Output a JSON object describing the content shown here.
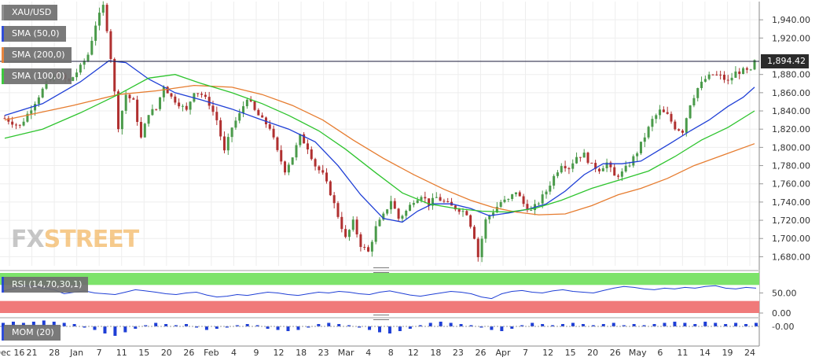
{
  "chart_data": [
    {
      "type": "candlestick",
      "symbol": "XAU/USD",
      "last_price_label": "1,894.42",
      "last_price": 1894.42,
      "ylim": [
        1670,
        1960
      ],
      "yticks": [
        {
          "v": 1680,
          "label": "1,680.00"
        },
        {
          "v": 1700,
          "label": "1,700.00"
        },
        {
          "v": 1720,
          "label": "1,720.00"
        },
        {
          "v": 1740,
          "label": "1,740.00"
        },
        {
          "v": 1760,
          "label": "1,760.00"
        },
        {
          "v": 1780,
          "label": "1,780.00"
        },
        {
          "v": 1800,
          "label": "1,800.00"
        },
        {
          "v": 1820,
          "label": "1,820.00"
        },
        {
          "v": 1840,
          "label": "1,840.00"
        },
        {
          "v": 1860,
          "label": "1,860.00"
        },
        {
          "v": 1880,
          "label": "1,880.00"
        },
        {
          "v": 1920,
          "label": "1,920.00"
        },
        {
          "v": 1940,
          "label": "1,940.00"
        }
      ],
      "xticks": [
        "Dec 16",
        "21",
        "28",
        "Jan",
        "7",
        "11",
        "15",
        "20",
        "26",
        "Feb",
        "4",
        "9",
        "12",
        "18",
        "23",
        "Mar",
        "4",
        "8",
        "12",
        "18",
        "23",
        "26",
        "Apr",
        "7",
        "12",
        "15",
        "20",
        "26",
        "May",
        "6",
        "11",
        "14",
        "19",
        "24"
      ],
      "price_path": [
        [
          0,
          1832
        ],
        [
          8,
          1823
        ],
        [
          16,
          1850
        ],
        [
          22,
          1870
        ],
        [
          28,
          1880
        ],
        [
          34,
          1872
        ],
        [
          40,
          1888
        ],
        [
          44,
          1902
        ],
        [
          48,
          1935
        ],
        [
          52,
          1955
        ],
        [
          55,
          1918
        ],
        [
          58,
          1860
        ],
        [
          60,
          1823
        ],
        [
          64,
          1858
        ],
        [
          68,
          1850
        ],
        [
          72,
          1810
        ],
        [
          76,
          1838
        ],
        [
          80,
          1842
        ],
        [
          84,
          1868
        ],
        [
          88,
          1855
        ],
        [
          92,
          1848
        ],
        [
          96,
          1840
        ],
        [
          100,
          1862
        ],
        [
          104,
          1858
        ],
        [
          108,
          1848
        ],
        [
          112,
          1830
        ],
        [
          116,
          1795
        ],
        [
          120,
          1822
        ],
        [
          124,
          1836
        ],
        [
          128,
          1855
        ],
        [
          132,
          1840
        ],
        [
          136,
          1830
        ],
        [
          140,
          1822
        ],
        [
          144,
          1795
        ],
        [
          148,
          1775
        ],
        [
          152,
          1790
        ],
        [
          156,
          1812
        ],
        [
          160,
          1800
        ],
        [
          164,
          1780
        ],
        [
          168,
          1770
        ],
        [
          172,
          1750
        ],
        [
          176,
          1725
        ],
        [
          180,
          1700
        ],
        [
          184,
          1718
        ],
        [
          188,
          1693
        ],
        [
          192,
          1685
        ],
        [
          196,
          1712
        ],
        [
          200,
          1725
        ],
        [
          204,
          1742
        ],
        [
          208,
          1722
        ],
        [
          212,
          1730
        ],
        [
          216,
          1742
        ],
        [
          220,
          1748
        ],
        [
          224,
          1738
        ],
        [
          228,
          1745
        ],
        [
          232,
          1740
        ],
        [
          236,
          1735
        ],
        [
          240,
          1732
        ],
        [
          244,
          1728
        ],
        [
          248,
          1702
        ],
        [
          250,
          1680
        ],
        [
          254,
          1720
        ],
        [
          258,
          1730
        ],
        [
          262,
          1740
        ],
        [
          266,
          1742
        ],
        [
          270,
          1752
        ],
        [
          274,
          1738
        ],
        [
          278,
          1730
        ],
        [
          282,
          1740
        ],
        [
          286,
          1752
        ],
        [
          290,
          1768
        ],
        [
          294,
          1782
        ],
        [
          298,
          1778
        ],
        [
          302,
          1790
        ],
        [
          306,
          1792
        ],
        [
          310,
          1780
        ],
        [
          314,
          1776
        ],
        [
          318,
          1783
        ],
        [
          322,
          1768
        ],
        [
          326,
          1772
        ],
        [
          330,
          1782
        ],
        [
          334,
          1795
        ],
        [
          338,
          1812
        ],
        [
          342,
          1830
        ],
        [
          346,
          1840
        ],
        [
          350,
          1835
        ],
        [
          354,
          1822
        ],
        [
          358,
          1818
        ],
        [
          362,
          1848
        ],
        [
          366,
          1865
        ],
        [
          370,
          1875
        ],
        [
          374,
          1880
        ],
        [
          378,
          1878
        ],
        [
          382,
          1872
        ],
        [
          386,
          1882
        ],
        [
          390,
          1884
        ],
        [
          394,
          1883
        ],
        [
          396,
          1894
        ]
      ],
      "series": [
        {
          "name": "SMA (50,0)",
          "color": "#1f3fd6",
          "points": [
            [
              0,
              1835
            ],
            [
              20,
              1848
            ],
            [
              40,
              1872
            ],
            [
              55,
              1895
            ],
            [
              64,
              1893
            ],
            [
              76,
              1875
            ],
            [
              90,
              1860
            ],
            [
              104,
              1852
            ],
            [
              120,
              1842
            ],
            [
              136,
              1830
            ],
            [
              150,
              1820
            ],
            [
              164,
              1806
            ],
            [
              176,
              1780
            ],
            [
              188,
              1748
            ],
            [
              200,
              1722
            ],
            [
              210,
              1718
            ],
            [
              218,
              1730
            ],
            [
              226,
              1738
            ],
            [
              236,
              1738
            ],
            [
              246,
              1733
            ],
            [
              256,
              1725
            ],
            [
              266,
              1728
            ],
            [
              276,
              1732
            ],
            [
              286,
              1738
            ],
            [
              296,
              1752
            ],
            [
              306,
              1770
            ],
            [
              316,
              1782
            ],
            [
              326,
              1782
            ],
            [
              336,
              1785
            ],
            [
              344,
              1795
            ],
            [
              352,
              1805
            ],
            [
              362,
              1818
            ],
            [
              372,
              1830
            ],
            [
              382,
              1845
            ],
            [
              390,
              1855
            ],
            [
              396,
              1866
            ]
          ]
        },
        {
          "name": "SMA (200,0)",
          "color": "#e67c2f",
          "points": [
            [
              0,
              1830
            ],
            [
              36,
              1846
            ],
            [
              60,
              1858
            ],
            [
              80,
              1862
            ],
            [
              100,
              1868
            ],
            [
              120,
              1866
            ],
            [
              136,
              1858
            ],
            [
              152,
              1846
            ],
            [
              168,
              1830
            ],
            [
              184,
              1808
            ],
            [
              200,
              1788
            ],
            [
              216,
              1770
            ],
            [
              232,
              1754
            ],
            [
              246,
              1742
            ],
            [
              258,
              1734
            ],
            [
              270,
              1729
            ],
            [
              282,
              1726
            ],
            [
              296,
              1727
            ],
            [
              310,
              1736
            ],
            [
              324,
              1748
            ],
            [
              336,
              1755
            ],
            [
              350,
              1766
            ],
            [
              364,
              1780
            ],
            [
              380,
              1792
            ],
            [
              396,
              1804
            ]
          ]
        },
        {
          "name": "SMA (100,0)",
          "color": "#2ec42e",
          "points": [
            [
              0,
              1810
            ],
            [
              20,
              1820
            ],
            [
              40,
              1838
            ],
            [
              60,
              1858
            ],
            [
              76,
              1876
            ],
            [
              90,
              1880
            ],
            [
              104,
              1870
            ],
            [
              120,
              1860
            ],
            [
              136,
              1848
            ],
            [
              150,
              1835
            ],
            [
              166,
              1818
            ],
            [
              180,
              1798
            ],
            [
              196,
              1772
            ],
            [
              210,
              1750
            ],
            [
              224,
              1738
            ],
            [
              238,
              1733
            ],
            [
              252,
              1730
            ],
            [
              266,
              1729
            ],
            [
              280,
              1733
            ],
            [
              294,
              1742
            ],
            [
              310,
              1755
            ],
            [
              326,
              1765
            ],
            [
              340,
              1774
            ],
            [
              354,
              1790
            ],
            [
              368,
              1808
            ],
            [
              382,
              1822
            ],
            [
              396,
              1840
            ]
          ]
        }
      ]
    },
    {
      "type": "line",
      "name": "RSI (14,70,30,1)",
      "ylim": [
        0,
        100
      ],
      "yticks": [
        {
          "v": 50,
          "label": "50.00"
        },
        {
          "v": 0,
          "label": "0.00"
        }
      ],
      "overbought": 70,
      "oversold": 30,
      "values": [
        55,
        60,
        68,
        66,
        62,
        58,
        48,
        52,
        55,
        50,
        48,
        46,
        52,
        58,
        55,
        52,
        48,
        46,
        50,
        52,
        45,
        40,
        42,
        46,
        44,
        48,
        52,
        50,
        46,
        44,
        48,
        52,
        50,
        54,
        52,
        48,
        46,
        52,
        55,
        50,
        45,
        42,
        46,
        50,
        54,
        52,
        48,
        40,
        36,
        48,
        54,
        56,
        52,
        50,
        55,
        58,
        54,
        52,
        50,
        56,
        62,
        66,
        64,
        60,
        58,
        62,
        60,
        64,
        62,
        66,
        68,
        62,
        60,
        64,
        62
      ]
    },
    {
      "type": "bar",
      "name": "MOM (20)",
      "yticks": [
        {
          "v": 0,
          "label": "-0.00"
        }
      ],
      "values": [
        3,
        4,
        3,
        4,
        5,
        4,
        3,
        2,
        -1,
        -3,
        -6,
        -8,
        -5,
        -2,
        1,
        3,
        2,
        1,
        2,
        -1,
        -3,
        -2,
        -1,
        1,
        2,
        1,
        -2,
        -3,
        -4,
        -3,
        -1,
        2,
        3,
        2,
        1,
        -1,
        -3,
        -5,
        -6,
        -4,
        -2,
        1,
        3,
        4,
        3,
        2,
        1,
        -1,
        -3,
        -4,
        -2,
        1,
        3,
        2,
        1,
        2,
        3,
        2,
        1,
        2,
        3,
        1,
        2,
        1,
        2,
        3,
        4,
        3,
        2,
        4,
        3,
        2,
        3,
        2,
        3
      ]
    }
  ]
}
